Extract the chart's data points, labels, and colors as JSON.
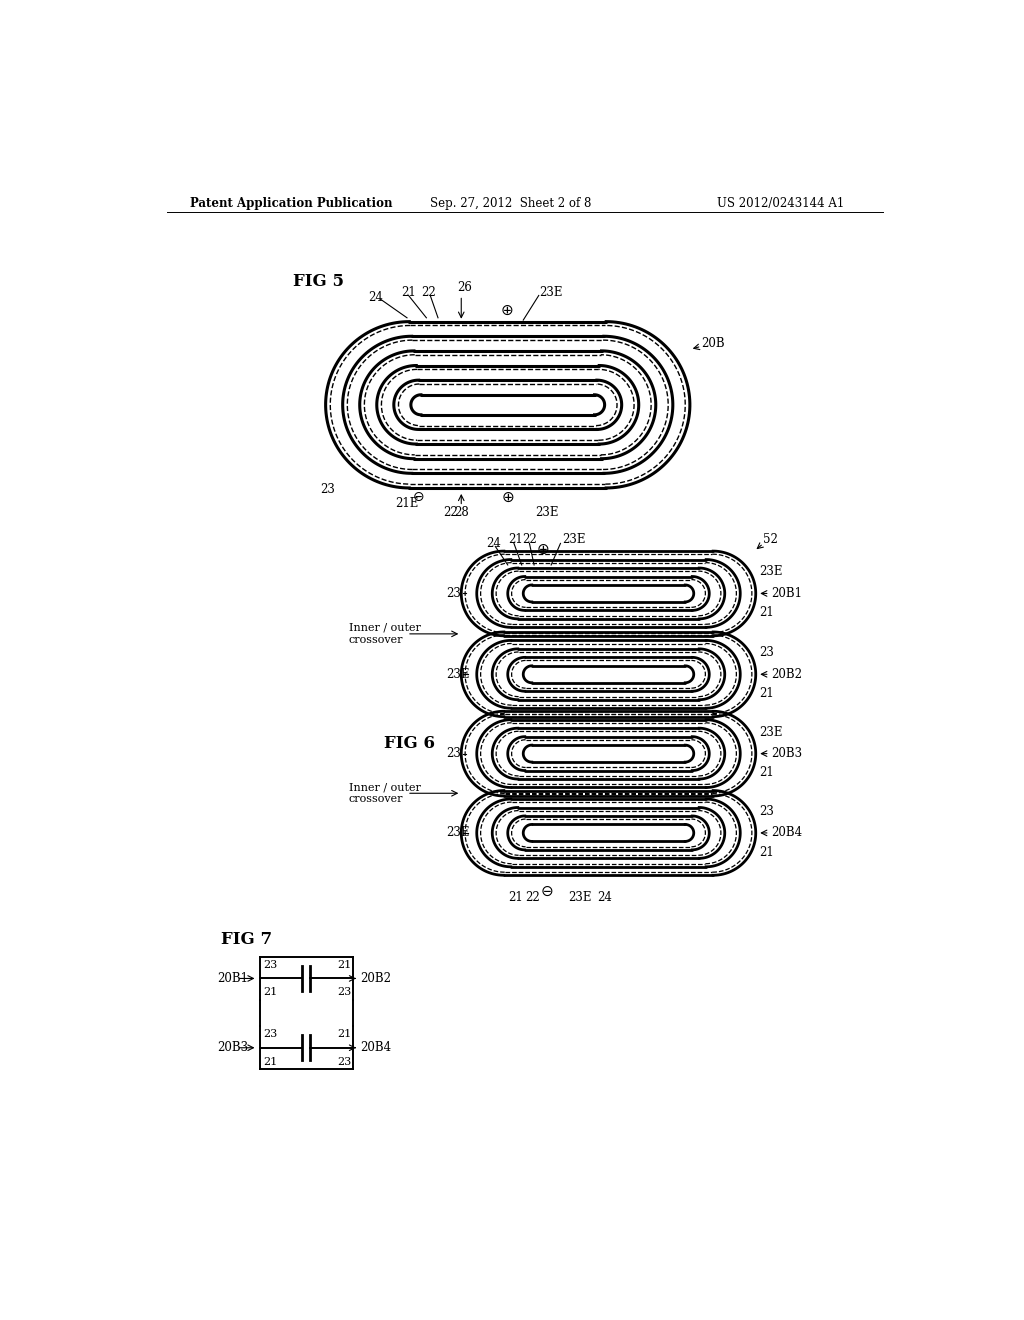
{
  "header_left": "Patent Application Publication",
  "header_mid": "Sep. 27, 2012  Sheet 2 of 8",
  "header_right": "US 2012/0243144 A1",
  "background": "#ffffff",
  "line_color": "#000000",
  "fig5_label": "FIG 5",
  "fig6_label": "FIG 6",
  "fig7_label": "FIG 7"
}
